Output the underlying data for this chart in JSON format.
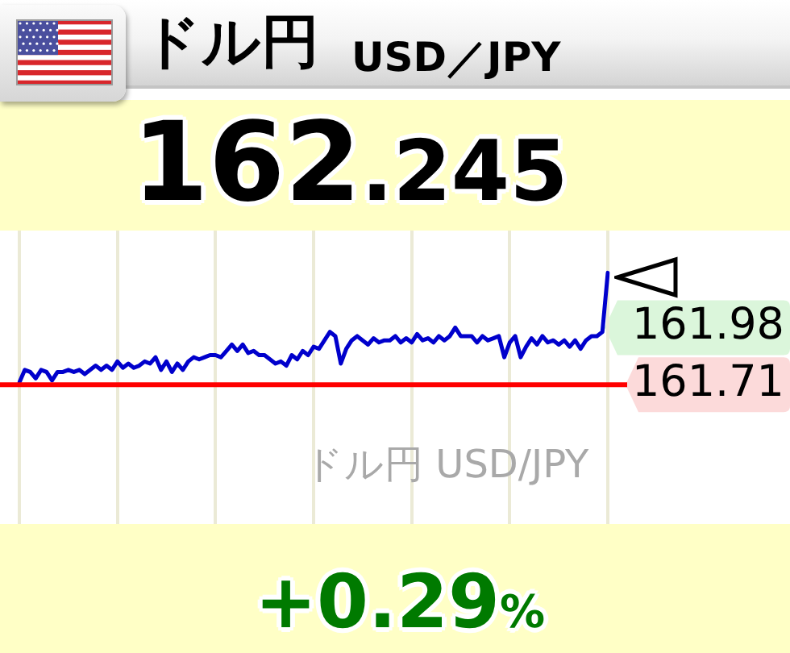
{
  "chart_data": {
    "type": "line",
    "title": "ドル円",
    "subtitle": "USD／JPY",
    "annotations": [
      "162.245",
      "ドル円 USD/JPY",
      "+0.29%"
    ],
    "categories": [
      null,
      null,
      null,
      null,
      null,
      null,
      null,
      null,
      null,
      null,
      null,
      null,
      null,
      null,
      null,
      null,
      null,
      null,
      null,
      null,
      null,
      null,
      null,
      null,
      null,
      null,
      null,
      null,
      null,
      null,
      null,
      null,
      null,
      null,
      null,
      null,
      null,
      null,
      null,
      null,
      null,
      null,
      null,
      null,
      null,
      null,
      null,
      null,
      null,
      null,
      null,
      null,
      null,
      null,
      null,
      null,
      null,
      null,
      null,
      null,
      null,
      null,
      null,
      null,
      null,
      null,
      null,
      null,
      null,
      null,
      null,
      null,
      null,
      null,
      null,
      null,
      null,
      null,
      null,
      null,
      null,
      null,
      null,
      null,
      null,
      null,
      null,
      null,
      null,
      null,
      null,
      null,
      null,
      null,
      null,
      null,
      null,
      null,
      null,
      null,
      null,
      null,
      null,
      null,
      null,
      null,
      null,
      null,
      null
    ],
    "values": [
      161.72,
      161.78,
      161.77,
      161.74,
      161.78,
      161.77,
      161.73,
      161.77,
      161.77,
      161.78,
      161.77,
      161.78,
      161.76,
      161.78,
      161.8,
      161.78,
      161.8,
      161.78,
      161.82,
      161.79,
      161.81,
      161.79,
      161.8,
      161.82,
      161.81,
      161.84,
      161.78,
      161.82,
      161.77,
      161.81,
      161.78,
      161.82,
      161.84,
      161.83,
      161.84,
      161.85,
      161.85,
      161.84,
      161.87,
      161.9,
      161.87,
      161.9,
      161.86,
      161.87,
      161.85,
      161.85,
      161.83,
      161.81,
      161.82,
      161.8,
      161.85,
      161.83,
      161.87,
      161.85,
      161.89,
      161.88,
      161.92,
      161.96,
      161.94,
      161.81,
      161.88,
      161.92,
      161.94,
      161.92,
      161.9,
      161.93,
      161.91,
      161.92,
      161.92,
      161.94,
      161.91,
      161.93,
      161.91,
      161.95,
      161.92,
      161.93,
      161.91,
      161.94,
      161.92,
      161.94,
      161.98,
      161.94,
      161.94,
      161.94,
      161.91,
      161.94,
      161.92,
      161.93,
      161.94,
      161.84,
      161.91,
      161.94,
      161.84,
      161.89,
      161.93,
      161.9,
      161.94,
      161.91,
      161.92,
      161.9,
      161.92,
      161.89,
      161.92,
      161.88,
      161.92,
      161.94,
      161.94,
      161.96,
      162.24
    ],
    "color": "#0000cc",
    "ylim": [
      161.05,
      162.44
    ],
    "yticks": [
      161.71,
      161.98
    ],
    "grid": "x",
    "ref_lines": [
      {
        "axis": "y",
        "value": 161.71,
        "color": "#ff0000"
      }
    ]
  }
}
